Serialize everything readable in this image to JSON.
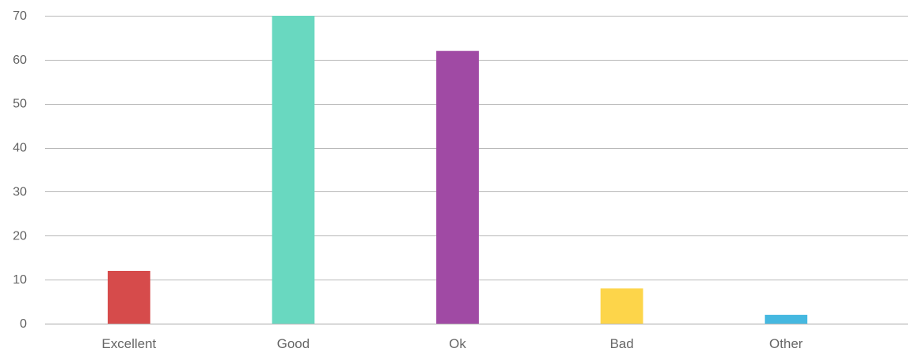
{
  "chart_data": {
    "type": "bar",
    "title": "",
    "xlabel": "",
    "ylabel": "",
    "categories": [
      "Excellent",
      "Good",
      "Ok",
      "Bad",
      "Other"
    ],
    "values": [
      12,
      70,
      62,
      8,
      2
    ],
    "colors": [
      "#d64b4b",
      "#69d8c0",
      "#a04aa4",
      "#fdd54a",
      "#45b8e0"
    ],
    "ylim": [
      0,
      70
    ],
    "yticks": [
      0,
      10,
      20,
      30,
      40,
      50,
      60,
      70
    ],
    "grid": true,
    "legend": "none"
  }
}
